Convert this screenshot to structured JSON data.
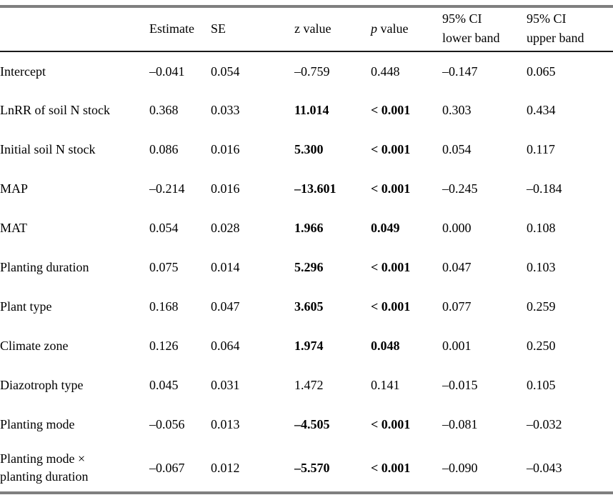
{
  "table": {
    "header": {
      "cells": [
        {
          "key": "label",
          "label": ""
        },
        {
          "key": "estimate",
          "label": "Estimate"
        },
        {
          "key": "se",
          "label": "SE"
        },
        {
          "key": "z",
          "label": "z value"
        },
        {
          "key": "p",
          "label": "p value",
          "italic_lead": 1
        },
        {
          "key": "ci_lower",
          "label": "95% CI\nlower band"
        },
        {
          "key": "ci_upper",
          "label": "95% CI\nupper band"
        }
      ]
    },
    "rows": [
      {
        "label": "Intercept",
        "estimate": "–0.041",
        "se": "0.054",
        "z": "–0.759",
        "z_bold": false,
        "p": "0.448",
        "p_bold": false,
        "ci_lower": "–0.147",
        "ci_upper": "0.065"
      },
      {
        "label": "LnRR of soil N stock",
        "estimate": "0.368",
        "se": "0.033",
        "z": "11.014",
        "z_bold": true,
        "p": "< 0.001",
        "p_bold": true,
        "ci_lower": "0.303",
        "ci_upper": "0.434"
      },
      {
        "label": "Initial soil N stock",
        "estimate": "0.086",
        "se": "0.016",
        "z": "5.300",
        "z_bold": true,
        "p": "< 0.001",
        "p_bold": true,
        "ci_lower": "0.054",
        "ci_upper": "0.117"
      },
      {
        "label": "MAP",
        "estimate": "–0.214",
        "se": "0.016",
        "z": "–13.601",
        "z_bold": true,
        "p": "< 0.001",
        "p_bold": true,
        "ci_lower": "–0.245",
        "ci_upper": "–0.184"
      },
      {
        "label": "MAT",
        "estimate": "0.054",
        "se": "0.028",
        "z": "1.966",
        "z_bold": true,
        "p": "0.049",
        "p_bold": true,
        "ci_lower": "0.000",
        "ci_upper": "0.108"
      },
      {
        "label": "Planting duration",
        "estimate": "0.075",
        "se": "0.014",
        "z": "5.296",
        "z_bold": true,
        "p": "< 0.001",
        "p_bold": true,
        "ci_lower": "0.047",
        "ci_upper": "0.103"
      },
      {
        "label": "Plant type",
        "estimate": "0.168",
        "se": "0.047",
        "z": "3.605",
        "z_bold": true,
        "p": "< 0.001",
        "p_bold": true,
        "ci_lower": "0.077",
        "ci_upper": "0.259"
      },
      {
        "label": "Climate zone",
        "estimate": "0.126",
        "se": "0.064",
        "z": "1.974",
        "z_bold": true,
        "p": "0.048",
        "p_bold": true,
        "ci_lower": "0.001",
        "ci_upper": "0.250"
      },
      {
        "label": "Diazotroph type",
        "estimate": "0.045",
        "se": "0.031",
        "z": "1.472",
        "z_bold": false,
        "p": "0.141",
        "p_bold": false,
        "ci_lower": "–0.015",
        "ci_upper": "0.105"
      },
      {
        "label": "Planting mode",
        "estimate": "–0.056",
        "se": "0.013",
        "z": "–4.505",
        "z_bold": true,
        "p": "< 0.001",
        "p_bold": true,
        "ci_lower": "–0.081",
        "ci_upper": "–0.032"
      },
      {
        "label": "Planting mode ×\nplanting duration",
        "estimate": "–0.067",
        "se": "0.012",
        "z": "–5.570",
        "z_bold": true,
        "p": "< 0.001",
        "p_bold": true,
        "ci_lower": "–0.090",
        "ci_upper": "–0.043",
        "two_line": true
      }
    ],
    "styles": {
      "rule_color_thick": "#7f7f7f",
      "rule_color_thin": "#1a1a1a",
      "text_color": "#000000"
    }
  }
}
